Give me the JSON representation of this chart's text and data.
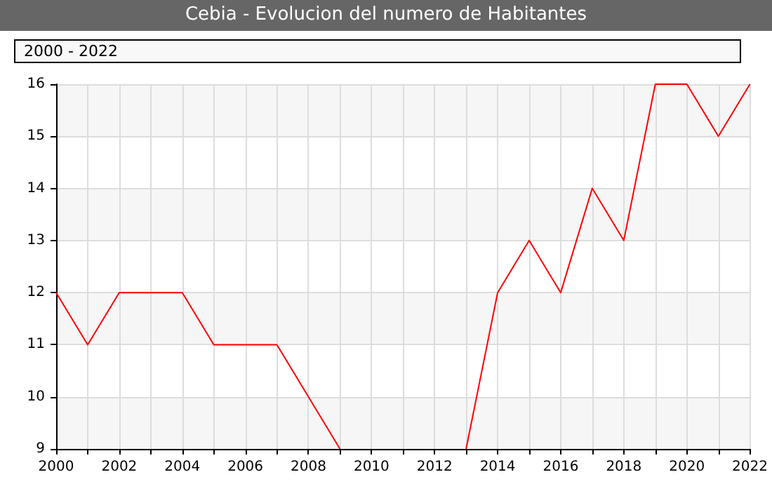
{
  "chart_data": {
    "type": "line",
    "title": "Cebia - Evolucion del numero de Habitantes",
    "annotations": [
      "2000 - 2022"
    ],
    "x": [
      2000,
      2001,
      2002,
      2003,
      2004,
      2005,
      2006,
      2007,
      2008,
      2009,
      2010,
      2011,
      2012,
      2013,
      2014,
      2015,
      2016,
      2017,
      2018,
      2019,
      2020,
      2021,
      2022
    ],
    "series": [
      {
        "color": "#ff0000",
        "values": [
          12,
          11,
          12,
          12,
          12,
          11,
          11,
          11,
          10,
          9,
          null,
          null,
          null,
          9,
          12,
          13,
          12,
          14,
          13,
          16,
          16,
          15,
          16
        ]
      }
    ],
    "xlim": [
      2000,
      2022
    ],
    "xticks": [
      2000,
      {
        "value": 2001,
        "label": null
      },
      2002,
      {
        "value": 2003,
        "label": null
      },
      2004,
      {
        "value": 2005,
        "label": null
      },
      2006,
      {
        "value": 2007,
        "label": null
      },
      2008,
      {
        "value": 2009,
        "label": null
      },
      2010,
      {
        "value": 2011,
        "label": null
      },
      2012,
      {
        "value": 2013,
        "label": null
      },
      2014,
      {
        "value": 2015,
        "label": null
      },
      2016,
      {
        "value": 2017,
        "label": null
      },
      2018,
      {
        "value": 2019,
        "label": null
      },
      2020,
      {
        "value": 2021,
        "label": null
      },
      2022
    ],
    "ylim": [
      9,
      16
    ],
    "yticks": [
      9,
      10,
      11,
      12,
      13,
      14,
      15,
      16
    ],
    "grid": true,
    "marker": "none",
    "line_style": "solid"
  }
}
